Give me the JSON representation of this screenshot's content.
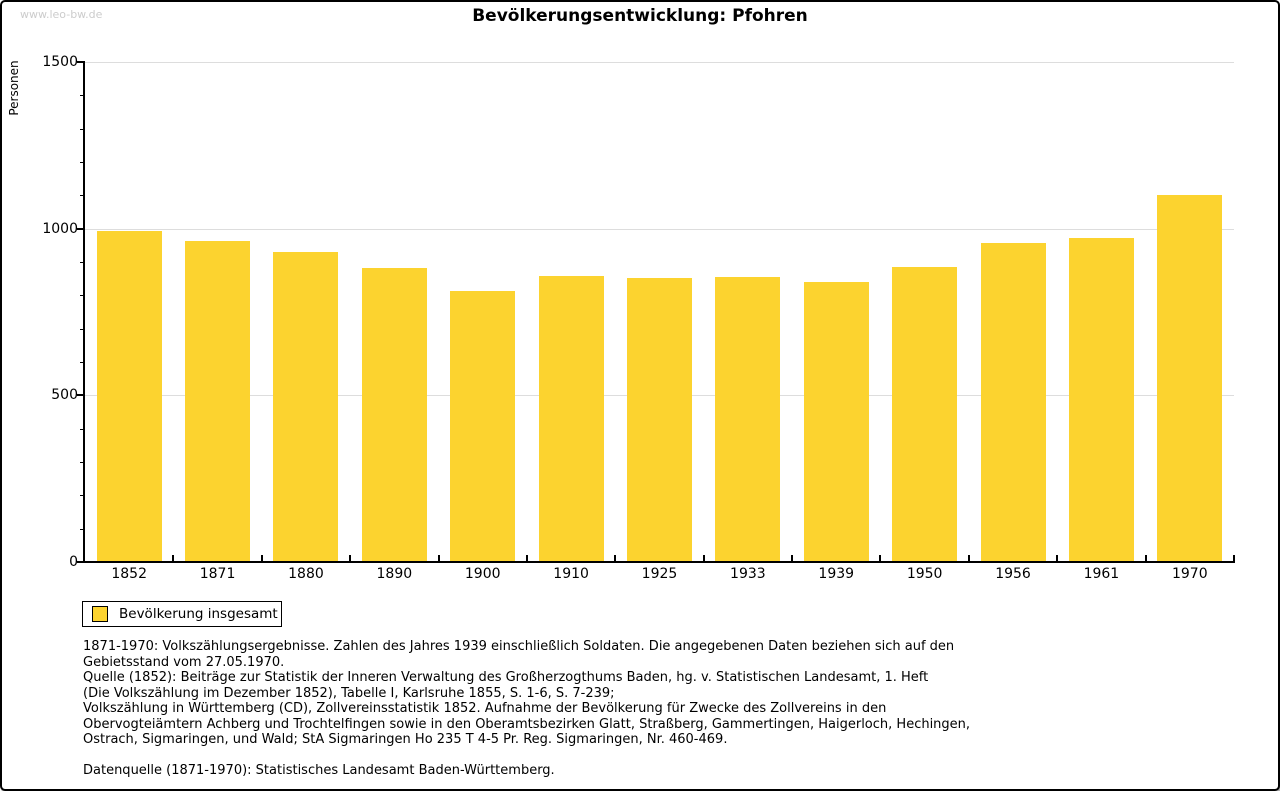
{
  "watermark": "www.leo-bw.de",
  "chart_data": {
    "type": "bar",
    "title": "Bevölkerungsentwicklung: Pfohren",
    "xlabel": "",
    "ylabel": "Personen",
    "categories": [
      "1852",
      "1871",
      "1880",
      "1890",
      "1900",
      "1910",
      "1925",
      "1933",
      "1939",
      "1950",
      "1956",
      "1961",
      "1970"
    ],
    "values": [
      992,
      962,
      929,
      881,
      813,
      858,
      853,
      855,
      840,
      884,
      957,
      972,
      1102
    ],
    "series_name": "Bevölkerung insgesamt",
    "ylim": [
      0,
      1500
    ],
    "yticks": [
      0,
      500,
      1000,
      1500
    ],
    "minor_tick_step": 100,
    "grid": true,
    "legend_position": "bottom-left",
    "bar_color": "#FCD32F",
    "grid_color": "#DDDDDD",
    "axis_color": "#000000",
    "watermark_color": "#CCCCCC"
  },
  "footer": {
    "lines": [
      "1871-1970: Volkszählungsergebnisse. Zahlen des Jahres 1939 einschließlich Soldaten. Die angegebenen Daten beziehen sich auf den",
      "Gebietsstand vom 27.05.1970.",
      "Quelle (1852): Beiträge zur Statistik der Inneren Verwaltung des Großherzogthums Baden, hg. v. Statistischen Landesamt, 1. Heft",
      "(Die Volkszählung im Dezember 1852), Tabelle I, Karlsruhe 1855, S. 1-6, S. 7-239;",
      "Volkszählung in Württemberg (CD), Zollvereinsstatistik 1852. Aufnahme der Bevölkerung für Zwecke des Zollvereins in den",
      "Obervogteiämtern Achberg und Trochtelfingen sowie in den Oberamtsbezirken Glatt, Straßberg, Gammertingen, Haigerloch, Hechingen,",
      "Ostrach, Sigmaringen, und Wald; StA Sigmaringen Ho 235 T 4-5 Pr. Reg. Sigmaringen, Nr. 460-469.",
      "",
      "Datenquelle (1871-1970): Statistisches Landesamt Baden-Württemberg."
    ]
  }
}
